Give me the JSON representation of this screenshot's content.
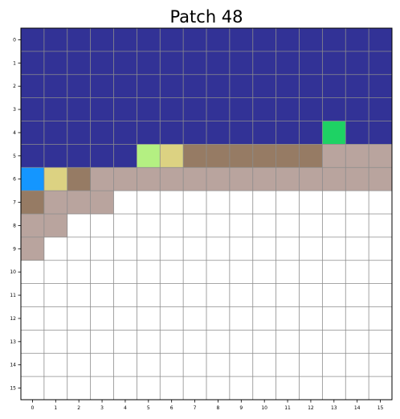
{
  "chart_data": {
    "type": "heatmap",
    "title": "Patch 48",
    "xlabel": "",
    "ylabel": "",
    "x_ticks": [
      "0",
      "1",
      "2",
      "3",
      "4",
      "5",
      "6",
      "7",
      "8",
      "9",
      "10",
      "11",
      "12",
      "13",
      "14",
      "15"
    ],
    "y_ticks": [
      "0",
      "1",
      "2",
      "3",
      "4",
      "5",
      "6",
      "7",
      "8",
      "9",
      "10",
      "11",
      "12",
      "13",
      "14",
      "15"
    ],
    "grid": true,
    "legend": "none",
    "palette": {
      "B": "#323296",
      "G": "#1ed264",
      "L": "#b4f082",
      "Y": "#dcd282",
      "N": "#967b64",
      "T": "#b9a49e",
      "A": "#1496ff",
      "W": "#ffffff"
    },
    "rows": [
      [
        "B",
        "B",
        "B",
        "B",
        "B",
        "B",
        "B",
        "B",
        "B",
        "B",
        "B",
        "B",
        "B",
        "B",
        "B",
        "B"
      ],
      [
        "B",
        "B",
        "B",
        "B",
        "B",
        "B",
        "B",
        "B",
        "B",
        "B",
        "B",
        "B",
        "B",
        "B",
        "B",
        "B"
      ],
      [
        "B",
        "B",
        "B",
        "B",
        "B",
        "B",
        "B",
        "B",
        "B",
        "B",
        "B",
        "B",
        "B",
        "B",
        "B",
        "B"
      ],
      [
        "B",
        "B",
        "B",
        "B",
        "B",
        "B",
        "B",
        "B",
        "B",
        "B",
        "B",
        "B",
        "B",
        "B",
        "B",
        "B"
      ],
      [
        "B",
        "B",
        "B",
        "B",
        "B",
        "B",
        "B",
        "B",
        "B",
        "B",
        "B",
        "B",
        "B",
        "G",
        "B",
        "B"
      ],
      [
        "B",
        "B",
        "B",
        "B",
        "B",
        "L",
        "Y",
        "N",
        "N",
        "N",
        "N",
        "N",
        "N",
        "T",
        "T",
        "T"
      ],
      [
        "A",
        "Y",
        "N",
        "T",
        "T",
        "T",
        "T",
        "T",
        "T",
        "T",
        "T",
        "T",
        "T",
        "T",
        "T",
        "T"
      ],
      [
        "N",
        "T",
        "T",
        "T",
        "W",
        "W",
        "W",
        "W",
        "W",
        "W",
        "W",
        "W",
        "W",
        "W",
        "W",
        "W"
      ],
      [
        "T",
        "T",
        "W",
        "W",
        "W",
        "W",
        "W",
        "W",
        "W",
        "W",
        "W",
        "W",
        "W",
        "W",
        "W",
        "W"
      ],
      [
        "T",
        "W",
        "W",
        "W",
        "W",
        "W",
        "W",
        "W",
        "W",
        "W",
        "W",
        "W",
        "W",
        "W",
        "W",
        "W"
      ],
      [
        "W",
        "W",
        "W",
        "W",
        "W",
        "W",
        "W",
        "W",
        "W",
        "W",
        "W",
        "W",
        "W",
        "W",
        "W",
        "W"
      ],
      [
        "W",
        "W",
        "W",
        "W",
        "W",
        "W",
        "W",
        "W",
        "W",
        "W",
        "W",
        "W",
        "W",
        "W",
        "W",
        "W"
      ],
      [
        "W",
        "W",
        "W",
        "W",
        "W",
        "W",
        "W",
        "W",
        "W",
        "W",
        "W",
        "W",
        "W",
        "W",
        "W",
        "W"
      ],
      [
        "W",
        "W",
        "W",
        "W",
        "W",
        "W",
        "W",
        "W",
        "W",
        "W",
        "W",
        "W",
        "W",
        "W",
        "W",
        "W"
      ],
      [
        "W",
        "W",
        "W",
        "W",
        "W",
        "W",
        "W",
        "W",
        "W",
        "W",
        "W",
        "W",
        "W",
        "W",
        "W",
        "W"
      ],
      [
        "W",
        "W",
        "W",
        "W",
        "W",
        "W",
        "W",
        "W",
        "W",
        "W",
        "W",
        "W",
        "W",
        "W",
        "W",
        "W"
      ]
    ]
  }
}
